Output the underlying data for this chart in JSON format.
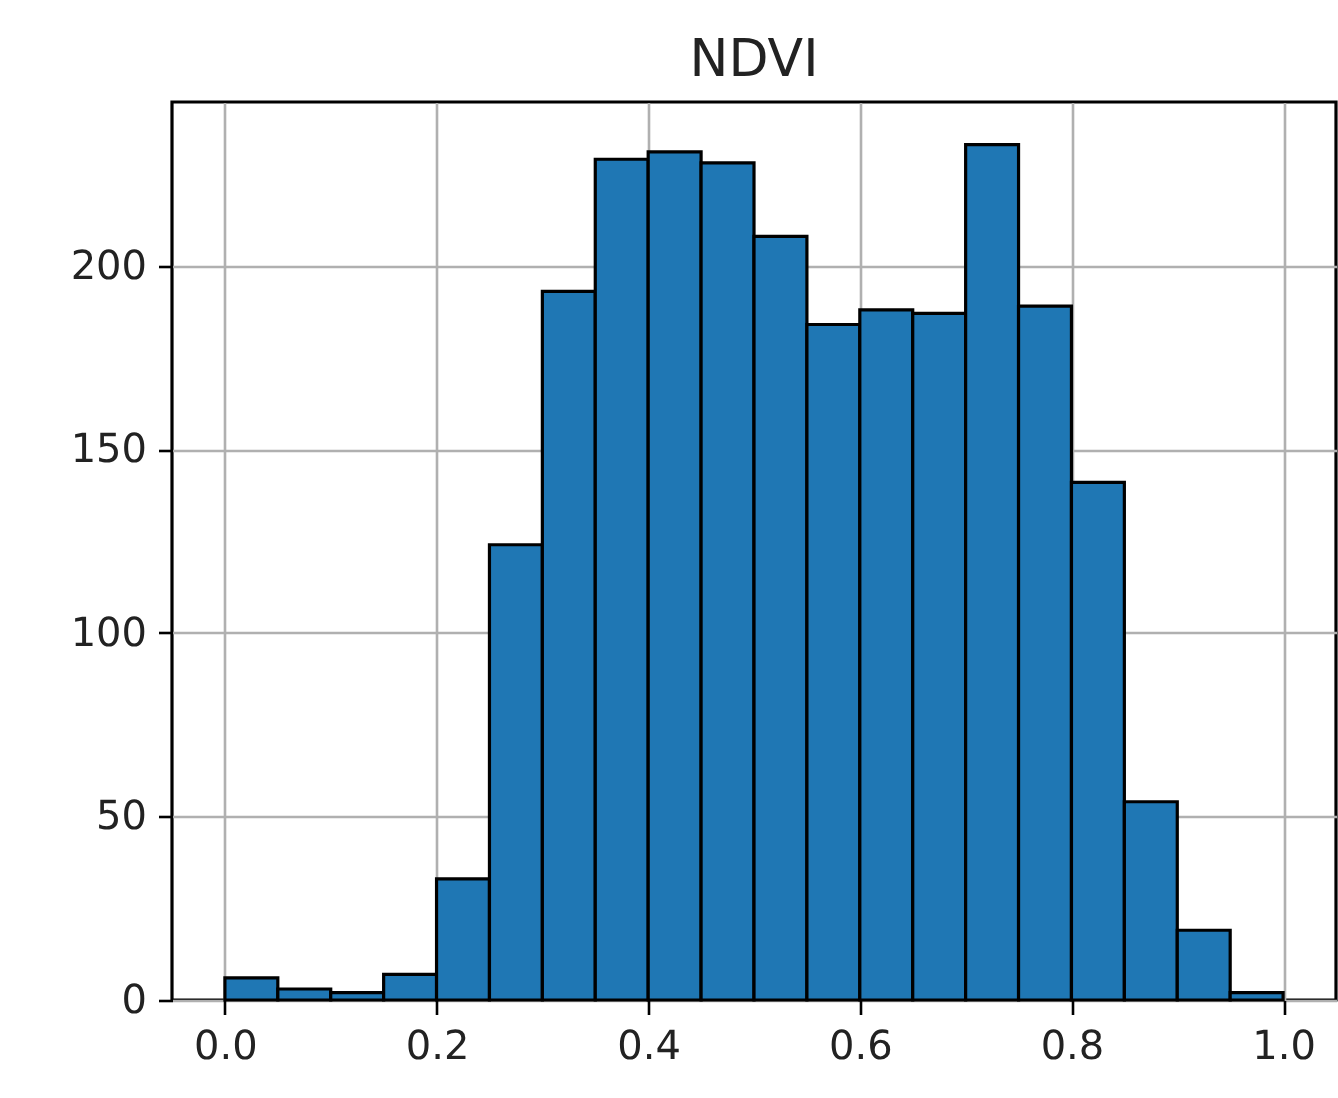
{
  "chart_data": {
    "type": "histogram",
    "title": "NDVI",
    "bins": [
      0,
      0.05,
      0.1,
      0.15,
      0.2,
      0.25,
      0.3,
      0.35,
      0.4,
      0.45,
      0.5,
      0.55,
      0.6,
      0.65,
      0.7,
      0.75,
      0.8,
      0.85,
      0.9,
      0.95,
      1.0
    ],
    "values": [
      6,
      3,
      2,
      7,
      33,
      124,
      193,
      229,
      231,
      228,
      208,
      184,
      188,
      187,
      233,
      189,
      141,
      54,
      19,
      2
    ],
    "color": "#1f77b4",
    "xlim": [
      -0.05,
      1.05
    ],
    "xticks": [
      {
        "value": 0,
        "label": "0.0"
      },
      0.2,
      0.4,
      0.6,
      0.8,
      {
        "value": 1,
        "label": "1.0"
      }
    ],
    "ylim": [
      0,
      244.6
    ],
    "yticks": [
      0,
      50,
      100,
      150,
      200
    ],
    "grid": true
  }
}
